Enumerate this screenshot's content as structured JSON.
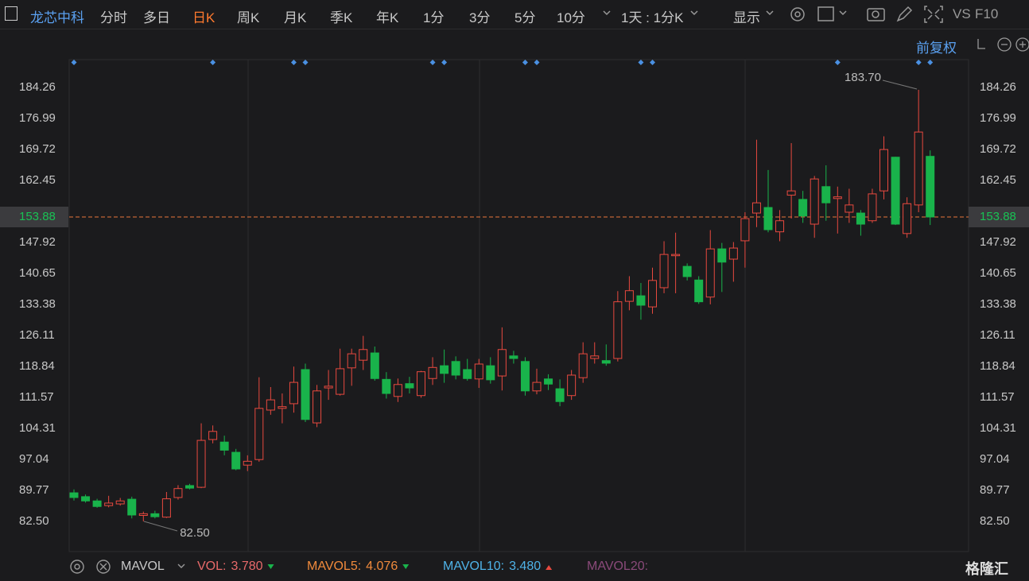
{
  "toolbar": {
    "stock": "龙芯中科",
    "tabs": [
      "分时",
      "多日",
      "日K",
      "周K",
      "月K",
      "季K",
      "年K",
      "1分",
      "3分",
      "5分",
      "10分"
    ],
    "active_tab": 2,
    "interval": "1天 : 1分K",
    "display": "显示",
    "vs": "VS",
    "f10": "F10"
  },
  "adjust": "前复权",
  "chart_data": {
    "type": "candlestick",
    "up_color": "#e8493f",
    "down_color": "#19b34b",
    "open": [
      89.2,
      88.3,
      87.3,
      86.2,
      86.6,
      87.7,
      83.9,
      84.3,
      83.5,
      88.1,
      90.9,
      90.5,
      101.7,
      101.1,
      98.7,
      95.7,
      97.0,
      108.6,
      109.0,
      110.1,
      118.1,
      105.6,
      113.8,
      112.3,
      118.5,
      120.3,
      122.0,
      115.8,
      111.8,
      114.8,
      112.0,
      116.0,
      119.0,
      120.0,
      118.1,
      115.9,
      119.0,
      116.6,
      121.3,
      120.0,
      113.1,
      115.9,
      113.6,
      112.0,
      116.2,
      120.7,
      120.2,
      120.7,
      134.1,
      135.4,
      132.8,
      137.3,
      144.8,
      142.3,
      139.1,
      135.1,
      146.4,
      144.0,
      148.3,
      154.8,
      156.1,
      150.4,
      159.0,
      158.0,
      152.2,
      161.0,
      158.2,
      155.0,
      154.8,
      153.0,
      160.0,
      167.9,
      150.0,
      156.7,
      168.1
    ],
    "high": [
      90.0,
      88.8,
      87.8,
      88.5,
      88.0,
      88.3,
      84.8,
      85.0,
      89.4,
      91.0,
      91.3,
      105.5,
      105.0,
      102.6,
      99.5,
      98.0,
      116.3,
      114.0,
      112.5,
      118.8,
      119.5,
      114.5,
      118.0,
      123.0,
      123.0,
      126.0,
      123.5,
      117.5,
      116.0,
      116.4,
      117.8,
      121.0,
      122.8,
      121.2,
      120.6,
      120.6,
      121.0,
      128.0,
      122.5,
      121.0,
      118.3,
      117.0,
      115.8,
      118.0,
      124.5,
      124.5,
      124.0,
      136.5,
      140.0,
      138.4,
      142.0,
      148.2,
      150.2,
      143.0,
      140.0,
      150.8,
      147.8,
      148.0,
      155.0,
      172.0,
      164.9,
      155.5,
      171.2,
      160.0,
      163.5,
      166.0,
      161.0,
      160.5,
      155.5,
      160.5,
      172.8,
      168.0,
      158.5,
      183.7,
      169.5
    ],
    "low": [
      87.4,
      86.9,
      85.7,
      85.8,
      86.2,
      83.2,
      82.5,
      83.2,
      83.3,
      87.6,
      90.0,
      90.3,
      100.8,
      98.0,
      94.5,
      94.3,
      96.5,
      107.5,
      105.5,
      108.0,
      105.8,
      104.6,
      111.0,
      112.0,
      114.3,
      118.0,
      115.5,
      111.3,
      110.5,
      112.5,
      111.5,
      114.5,
      115.0,
      115.8,
      115.5,
      113.8,
      114.8,
      113.2,
      119.5,
      112.0,
      112.3,
      113.3,
      109.5,
      111.0,
      115.0,
      119.5,
      119.0,
      120.0,
      132.0,
      129.8,
      131.2,
      136.0,
      136.0,
      139.0,
      133.5,
      133.4,
      136.3,
      138.7,
      142.0,
      151.5,
      150.3,
      148.2,
      153.5,
      152.5,
      149.0,
      153.0,
      150.0,
      152.5,
      149.5,
      152.5,
      158.0,
      152.0,
      149.0,
      155.0,
      152.0
    ],
    "close": [
      88.1,
      87.3,
      86.0,
      86.8,
      87.3,
      84.0,
      84.3,
      83.6,
      87.8,
      90.2,
      90.3,
      101.5,
      103.6,
      99.2,
      94.8,
      96.6,
      109.0,
      111.0,
      109.4,
      115.1,
      106.4,
      113.1,
      114.2,
      118.3,
      121.8,
      122.8,
      116.0,
      112.5,
      114.6,
      113.8,
      117.6,
      118.6,
      117.2,
      116.8,
      116.0,
      119.4,
      115.7,
      122.8,
      120.7,
      113.1,
      115.1,
      114.7,
      110.6,
      116.8,
      121.8,
      121.3,
      119.6,
      134.0,
      136.6,
      133.2,
      139.0,
      145.1,
      145.1,
      139.9,
      134.0,
      146.4,
      143.3,
      146.6,
      153.5,
      157.2,
      150.9,
      153.0,
      160.0,
      154.1,
      162.8,
      157.2,
      158.6,
      156.7,
      152.2,
      159.3,
      169.7,
      152.2,
      157.0,
      173.8,
      153.88
    ],
    "last_price": 153.88,
    "annotations": [
      "183.70",
      "82.50"
    ],
    "ylim": [
      75.42,
      190.78
    ],
    "yticks": [
      184.26,
      176.99,
      169.72,
      162.45,
      147.92,
      140.65,
      133.38,
      126.11,
      118.84,
      111.57,
      104.31,
      97.04,
      89.77,
      {
        "value": 82.5,
        "label": "82.50"
      }
    ]
  },
  "footer": {
    "indicator": "MAVOL",
    "items": [
      {
        "name": "VOL:",
        "value": "3.780",
        "trend": "down"
      },
      {
        "name": "MAVOL5:",
        "value": "4.076",
        "trend": "down"
      },
      {
        "name": "MAVOL10:",
        "value": "3.480",
        "trend": "up"
      },
      {
        "name": "MAVOL20:"
      }
    ],
    "logo": "格隆汇"
  }
}
